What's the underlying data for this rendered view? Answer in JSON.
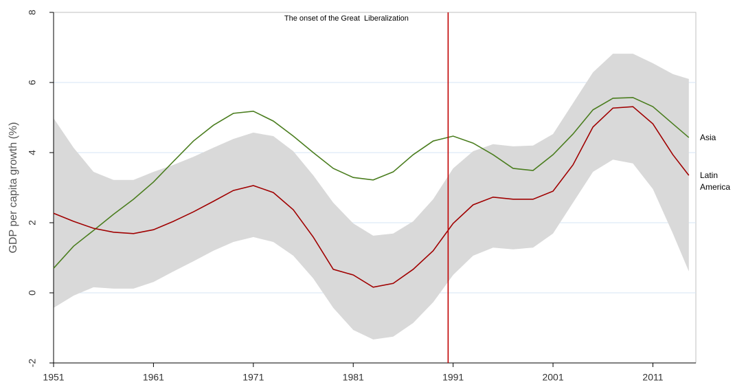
{
  "chart_data": {
    "type": "line",
    "y_label": "GDP per capita growth (%)",
    "annotation": {
      "x": 1990.5,
      "text": "The onset of the Great  Liberalization",
      "color": "#c00000"
    },
    "x": [
      1951,
      1953,
      1955,
      1957,
      1959,
      1961,
      1963,
      1965,
      1967,
      1969,
      1971,
      1973,
      1975,
      1977,
      1979,
      1981,
      1983,
      1985,
      1987,
      1989,
      1991,
      1993,
      1995,
      1997,
      1999,
      2001,
      2003,
      2005,
      2007,
      2009,
      2011,
      2013,
      2014.6
    ],
    "series": [
      {
        "name": "Asia",
        "color": "#4a7d1e",
        "values": [
          0.7,
          1.33,
          1.78,
          2.24,
          2.67,
          3.16,
          3.75,
          4.33,
          4.78,
          5.12,
          5.18,
          4.9,
          4.47,
          4.0,
          3.55,
          3.29,
          3.22,
          3.45,
          3.94,
          4.33,
          4.47,
          4.27,
          3.94,
          3.55,
          3.49,
          3.94,
          4.53,
          5.22,
          5.55,
          5.57,
          5.31,
          4.82,
          4.43
        ]
      },
      {
        "name": "Latin America",
        "color": "#a00000",
        "values": [
          2.27,
          2.04,
          1.84,
          1.73,
          1.69,
          1.8,
          2.04,
          2.31,
          2.61,
          2.92,
          3.06,
          2.86,
          2.37,
          1.59,
          0.67,
          0.51,
          0.16,
          0.27,
          0.67,
          1.2,
          1.98,
          2.51,
          2.73,
          2.67,
          2.67,
          2.9,
          3.65,
          4.73,
          5.27,
          5.31,
          4.82,
          3.94,
          3.35
        ]
      }
    ],
    "band": {
      "color": "#d9d9d9",
      "upper": [
        4.98,
        4.14,
        3.45,
        3.22,
        3.22,
        3.45,
        3.65,
        3.88,
        4.14,
        4.39,
        4.57,
        4.47,
        4.04,
        3.35,
        2.57,
        1.98,
        1.63,
        1.69,
        2.04,
        2.67,
        3.55,
        4.04,
        4.24,
        4.18,
        4.2,
        4.53,
        5.41,
        6.29,
        6.82,
        6.82,
        6.55,
        6.24,
        6.1
      ],
      "lower": [
        -0.43,
        -0.08,
        0.16,
        0.12,
        0.12,
        0.31,
        0.61,
        0.9,
        1.2,
        1.45,
        1.59,
        1.45,
        1.06,
        0.41,
        -0.43,
        -1.06,
        -1.33,
        -1.25,
        -0.86,
        -0.27,
        0.51,
        1.06,
        1.29,
        1.24,
        1.29,
        1.69,
        2.57,
        3.45,
        3.8,
        3.69,
        2.96,
        1.69,
        0.61
      ]
    },
    "xlim": [
      1951,
      2015.3
    ],
    "xticks": [
      1951,
      1961,
      1971,
      1981,
      1991,
      2001,
      2011
    ],
    "ylim": [
      -2,
      8
    ],
    "yticks": [
      -2,
      0,
      2,
      4,
      6,
      8
    ],
    "grid": true,
    "grid_color": "#d6e6f4"
  }
}
